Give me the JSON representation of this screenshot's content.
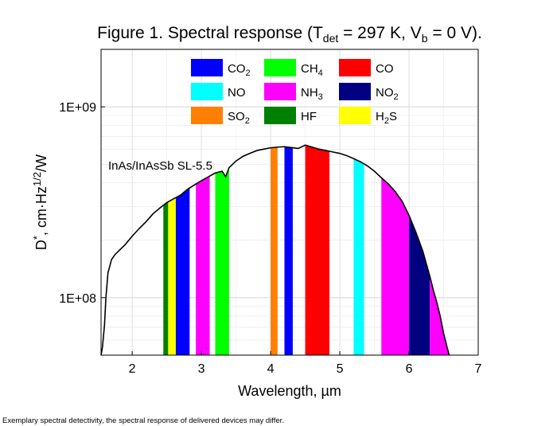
{
  "footnote": "Exemplary spectral detectivity, the spectral response of delivered devices may differ.",
  "chart_data": {
    "type": "area",
    "title": {
      "prefix": "Figure 1. Spectral response (T",
      "sub1": "det",
      "middle": " = 297 K, V",
      "sub2": "b",
      "suffix": " = 0 V)."
    },
    "xlabel": "Wavelength, µm",
    "ylabel": {
      "base": "D",
      "sup1": "*",
      "middle": ", cm·Hz",
      "sup2": "1/2",
      "suffix": "/W"
    },
    "xlim": [
      1.55,
      7.0
    ],
    "ylim": [
      50000000,
      2000000000
    ],
    "yscale": "log",
    "grid": true,
    "x_ticks": [
      {
        "value": 2,
        "label": "2"
      },
      {
        "value": 3,
        "label": "3"
      },
      {
        "value": 4,
        "label": "4"
      },
      {
        "value": 5,
        "label": "5"
      },
      {
        "value": 6,
        "label": "6"
      },
      {
        "value": 7,
        "label": "7"
      }
    ],
    "y_ticks": [
      {
        "value": 100000000,
        "label": "1E+08"
      },
      {
        "value": 1000000000,
        "label": "1E+09"
      }
    ],
    "annotation": "InAs/InAsSb SL-5.5",
    "legend_position": "top-center",
    "series": [
      {
        "color": "#000000",
        "x": [
          1.55,
          1.57,
          1.6,
          1.62,
          1.65,
          1.68,
          1.7,
          1.75,
          1.8,
          1.9,
          2.0,
          2.1,
          2.2,
          2.3,
          2.4,
          2.5,
          2.6,
          2.7,
          2.8,
          2.9,
          3.0,
          3.1,
          3.2,
          3.3,
          3.35,
          3.4,
          3.5,
          3.6,
          3.7,
          3.8,
          3.9,
          4.0,
          4.1,
          4.2,
          4.3,
          4.4,
          4.5,
          4.6,
          4.7,
          4.8,
          4.9,
          5.0,
          5.1,
          5.2,
          5.3,
          5.4,
          5.5,
          5.6,
          5.7,
          5.8,
          5.9,
          6.0,
          6.1,
          6.2,
          6.3,
          6.35,
          6.4,
          6.45,
          6.5,
          6.55,
          6.58
        ],
        "y": [
          50000000,
          55000000,
          72000000,
          100000000,
          135000000,
          148000000,
          158000000,
          168000000,
          175000000,
          190000000,
          210000000,
          230000000,
          250000000,
          275000000,
          295000000,
          315000000,
          330000000,
          345000000,
          370000000,
          390000000,
          410000000,
          430000000,
          450000000,
          460000000,
          430000000,
          480000000,
          520000000,
          550000000,
          570000000,
          590000000,
          600000000,
          610000000,
          615000000,
          618000000,
          612000000,
          605000000,
          630000000,
          615000000,
          600000000,
          590000000,
          580000000,
          570000000,
          555000000,
          535000000,
          515000000,
          490000000,
          460000000,
          425000000,
          395000000,
          360000000,
          320000000,
          270000000,
          220000000,
          175000000,
          130000000,
          110000000,
          95000000,
          80000000,
          65000000,
          55000000,
          50000000
        ]
      }
    ],
    "bands": [
      {
        "name": "HF",
        "x_range": [
          2.45,
          2.52
        ],
        "color": "#008000"
      },
      {
        "name": "H₂S",
        "x_range": [
          2.52,
          2.63
        ],
        "color": "#ffff00"
      },
      {
        "name": "CO₂",
        "x_range": [
          2.63,
          2.83
        ],
        "color": "#0000ff"
      },
      {
        "name": "NH₃",
        "x_range": [
          2.92,
          3.12
        ],
        "color": "#ff00ff"
      },
      {
        "name": "CH₄",
        "x_range": [
          3.2,
          3.4
        ],
        "color": "#00ff00"
      },
      {
        "name": "SO₂",
        "x_range": [
          4.0,
          4.1
        ],
        "color": "#ff8000"
      },
      {
        "name": "CO₂",
        "x_range": [
          4.2,
          4.32
        ],
        "color": "#0000ff"
      },
      {
        "name": "CO",
        "x_range": [
          4.5,
          4.85
        ],
        "color": "#ff0000"
      },
      {
        "name": "NO",
        "x_range": [
          5.2,
          5.35
        ],
        "color": "#00ffff"
      },
      {
        "name": "NH₃",
        "x_range": [
          5.6,
          6.0
        ],
        "color": "#ff00ff"
      },
      {
        "name": "NO₂",
        "x_range": [
          6.0,
          6.3
        ],
        "color": "#000080"
      },
      {
        "name": "NH₃",
        "x_range": [
          6.3,
          6.6
        ],
        "color": "#ff00ff"
      }
    ],
    "legend": [
      {
        "base": "CO",
        "sub": "2",
        "color": "#0000ff"
      },
      {
        "base": "CH",
        "sub": "4",
        "color": "#00ff00"
      },
      {
        "base": "CO",
        "sub": "",
        "color": "#ff0000"
      },
      {
        "base": "NO",
        "sub": "",
        "color": "#00ffff"
      },
      {
        "base": "NH",
        "sub": "3",
        "color": "#ff00ff"
      },
      {
        "base": "NO",
        "sub": "2",
        "color": "#000080"
      },
      {
        "base": "SO",
        "sub": "2",
        "color": "#ff8000"
      },
      {
        "base": "HF",
        "sub": "",
        "color": "#008000"
      },
      {
        "base": "H",
        "sub": "2",
        "suffix": "S",
        "color": "#ffff00"
      }
    ]
  }
}
